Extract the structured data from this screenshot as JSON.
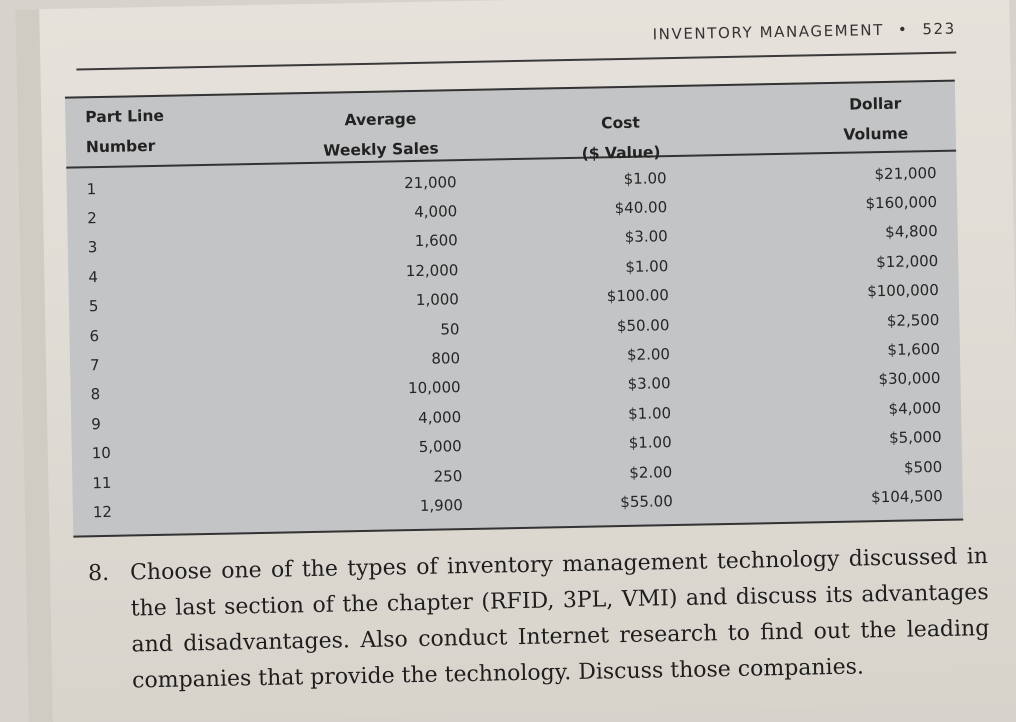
{
  "running_head": {
    "title": "INVENTORY MANAGEMENT",
    "separator": "•",
    "page_number": "523"
  },
  "table": {
    "headers": {
      "part_line": [
        "Part Line",
        "Number"
      ],
      "avg_weekly_sales": [
        "Average",
        "Weekly Sales"
      ],
      "cost": [
        "Cost",
        "($ Value)"
      ],
      "dollar_volume": [
        "Dollar",
        "Volume"
      ]
    },
    "rows": [
      {
        "part": "1",
        "sales": "21,000",
        "cost": "$1.00",
        "volume": "$21,000"
      },
      {
        "part": "2",
        "sales": "4,000",
        "cost": "$40.00",
        "volume": "$160,000"
      },
      {
        "part": "3",
        "sales": "1,600",
        "cost": "$3.00",
        "volume": "$4,800"
      },
      {
        "part": "4",
        "sales": "12,000",
        "cost": "$1.00",
        "volume": "$12,000"
      },
      {
        "part": "5",
        "sales": "1,000",
        "cost": "$100.00",
        "volume": "$100,000"
      },
      {
        "part": "6",
        "sales": "50",
        "cost": "$50.00",
        "volume": "$2,500"
      },
      {
        "part": "7",
        "sales": "800",
        "cost": "$2.00",
        "volume": "$1,600"
      },
      {
        "part": "8",
        "sales": "10,000",
        "cost": "$3.00",
        "volume": "$30,000"
      },
      {
        "part": "9",
        "sales": "4,000",
        "cost": "$1.00",
        "volume": "$4,000"
      },
      {
        "part": "10",
        "sales": "5,000",
        "cost": "$1.00",
        "volume": "$5,000"
      },
      {
        "part": "11",
        "sales": "250",
        "cost": "$2.00",
        "volume": "$500"
      },
      {
        "part": "12",
        "sales": "1,900",
        "cost": "$55.00",
        "volume": "$104,500"
      }
    ]
  },
  "exercise": {
    "number": "8.",
    "text": "Choose one of the types of inventory management technology discussed in the last section of the chapter (RFID, 3PL, VMI) and discuss its advantages and disadvantages. Also conduct Internet research to find out the leading companies that provide the technology. Discuss those companies."
  },
  "colors": {
    "paper": "#e2ded7",
    "table_fill": "#c3c4c6",
    "rule": "#333333",
    "text": "#262626"
  }
}
